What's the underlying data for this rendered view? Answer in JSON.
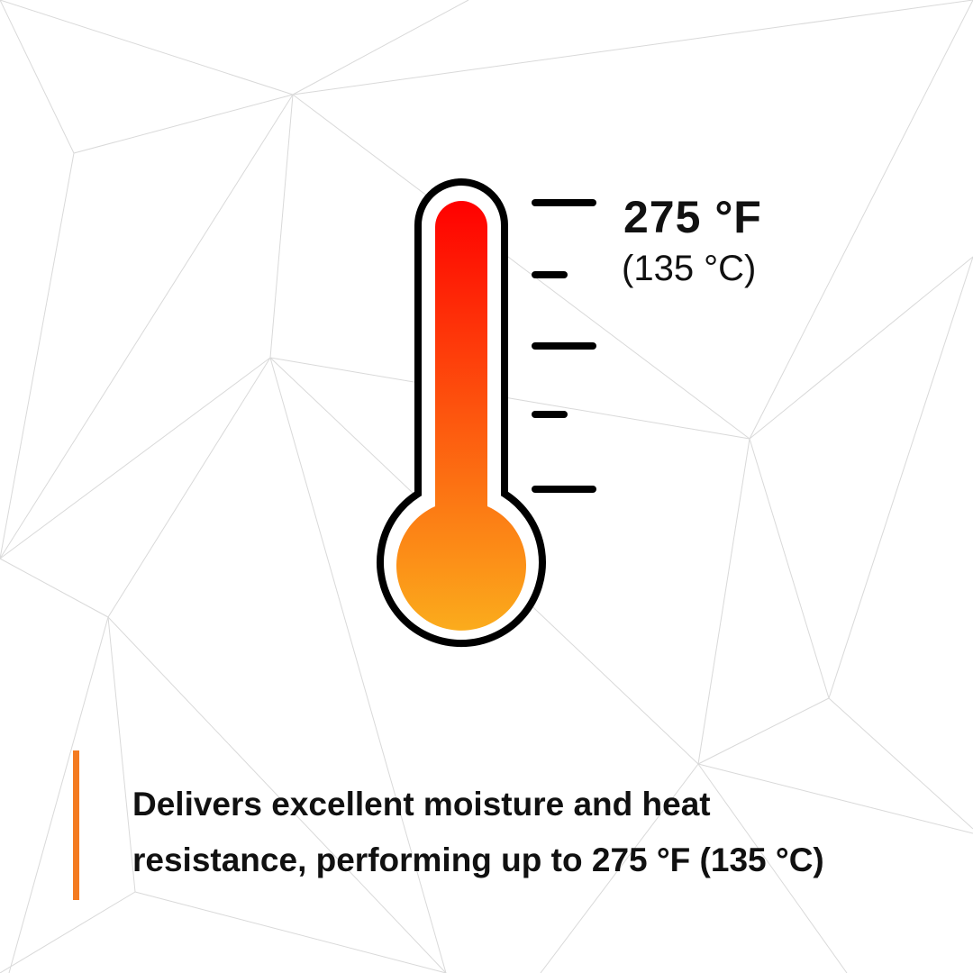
{
  "thermometer": {
    "icon": "thermometer-icon",
    "gradient_top": "#ff0000",
    "gradient_bottom": "#fbab1c",
    "outline_color": "#000000"
  },
  "temperature": {
    "fahrenheit": "275 °F",
    "celsius": "(135 °C)"
  },
  "caption": {
    "line1": "Delivers excellent moisture and heat",
    "line2": "resistance, performing up to 275 °F (135 °C)"
  },
  "accent_color": "#f47b20"
}
